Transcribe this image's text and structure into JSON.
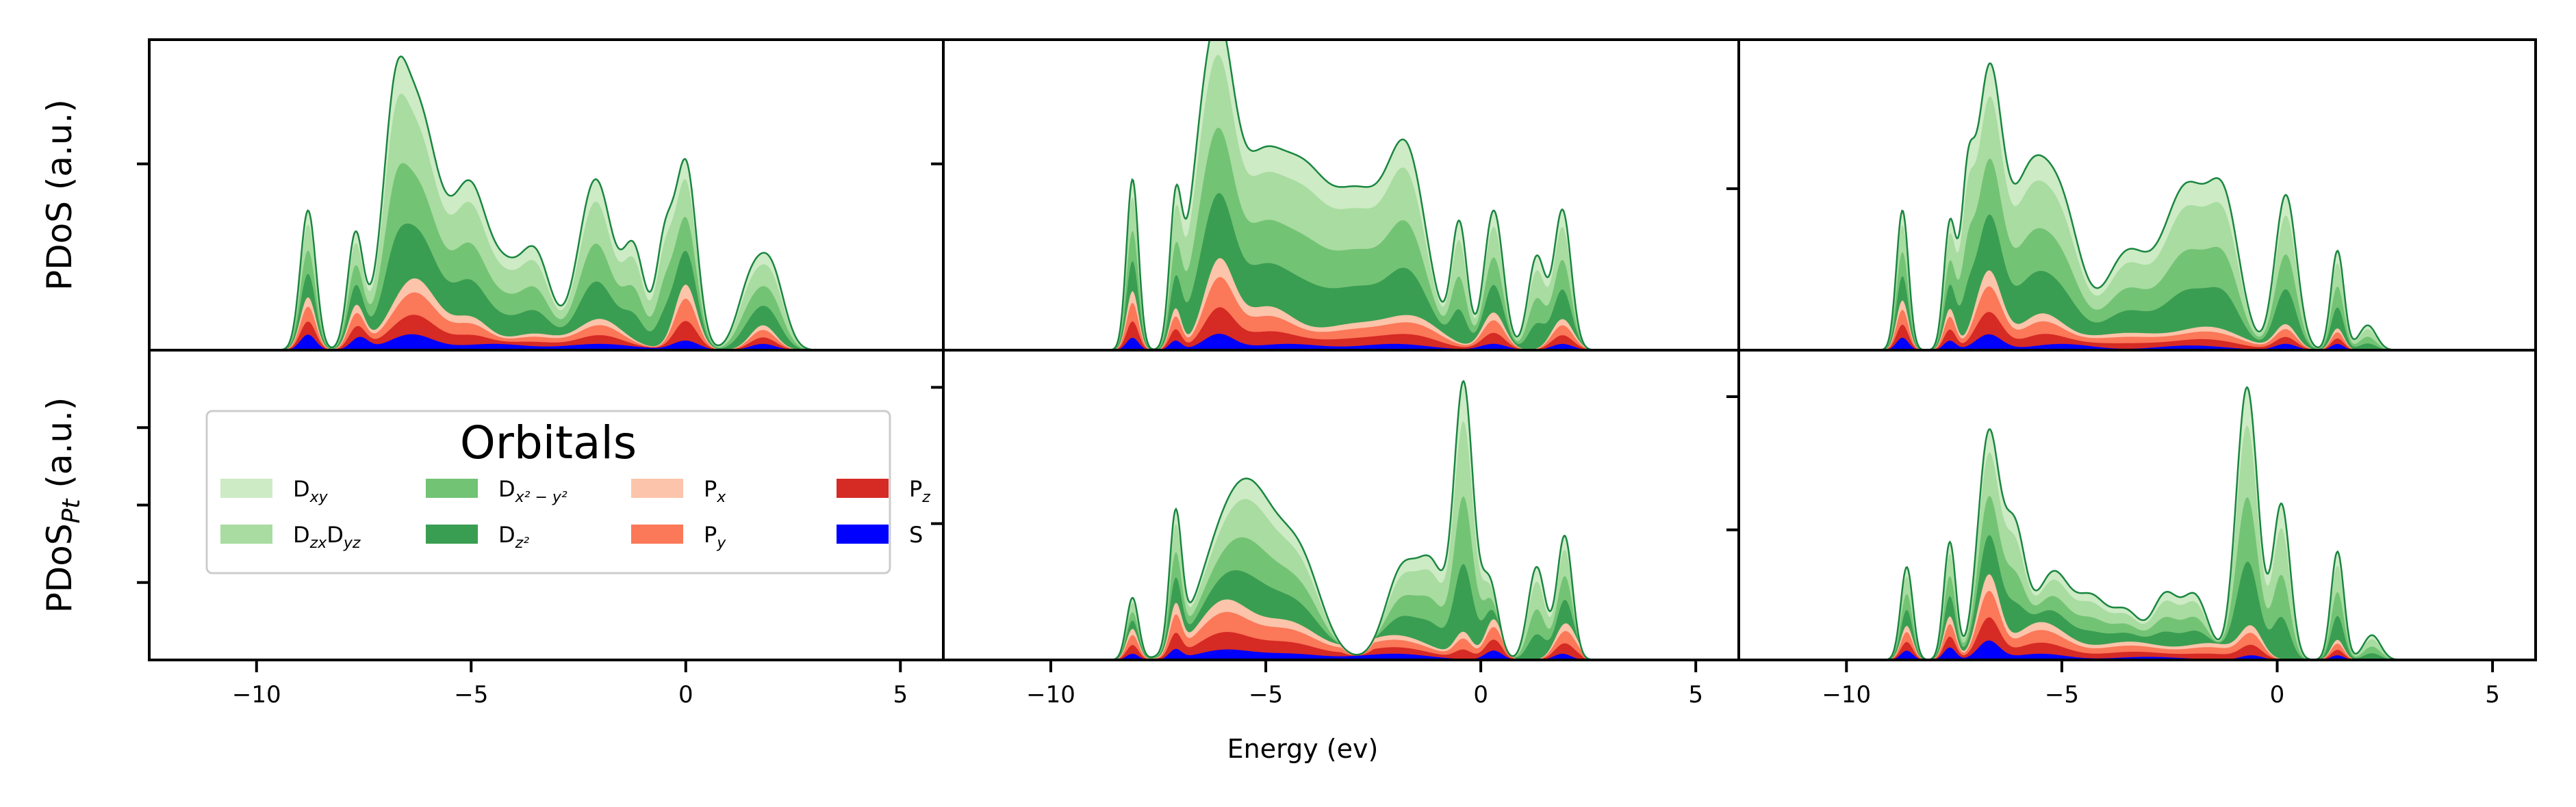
{
  "chart_data": {
    "type": "area",
    "layout": {
      "rows": 2,
      "cols": 3,
      "sharex": true
    },
    "xlabel": "Energy (ev)",
    "row_ylabels": [
      {
        "text": "PDoS (a.u.)",
        "sub": ""
      },
      {
        "text": "PDoS",
        "sub": "Pt",
        "suffix": " (a.u.)"
      }
    ],
    "xlim": [
      -12.5,
      6
    ],
    "xticks": [
      -10,
      -5,
      0,
      5
    ],
    "xtick_labels": [
      "−10",
      "−5",
      "0",
      "5"
    ],
    "ylim": [
      0,
      1
    ],
    "legend": {
      "title": "Orbitals",
      "placement": "center-left of bottom-left panel",
      "ncol": 4,
      "entries": [
        {
          "key": "Dxy",
          "label": "D",
          "sub": "xy"
        },
        {
          "key": "Dzx",
          "label": "D",
          "sub": "zx",
          "label2": "D",
          "sub2": "yz"
        },
        {
          "key": "Dx2",
          "label": "D",
          "sub": "x² − y²"
        },
        {
          "key": "Dz2",
          "label": "D",
          "sub": "z²"
        },
        {
          "key": "Px",
          "label": "P",
          "sub": "x"
        },
        {
          "key": "Py",
          "label": "P",
          "sub": "y"
        },
        {
          "key": "Pz",
          "label": "P",
          "sub": "z"
        },
        {
          "key": "S",
          "label": "S",
          "sub": ""
        }
      ]
    },
    "stack_order": [
      "S",
      "Pz",
      "Py",
      "Px",
      "Dz2",
      "Dx2",
      "Dzx",
      "Dxy"
    ],
    "colors": {
      "S": "#0000ff",
      "Pz": "#d62a24",
      "Py": "#fb7858",
      "Px": "#fcc4aa",
      "Dz2": "#3a9e52",
      "Dx2": "#73c375",
      "Dzx": "#a8dca0",
      "Dxy": "#cdebc5",
      "edge": "#1a8640"
    },
    "panels": [
      {
        "row": 0,
        "col": 0,
        "empty": false,
        "xmin": -12,
        "xmax": 5.2,
        "yticks": [
          0.6
        ],
        "total_peaks": [
          [
            -8.8,
            0.45,
            0.18
          ],
          [
            -7.7,
            0.35,
            0.18
          ],
          [
            -6.3,
            0.8,
            0.55
          ],
          [
            -6.8,
            0.35,
            0.25
          ],
          [
            -5,
            0.48,
            0.4
          ],
          [
            -4.2,
            0.2,
            0.35
          ],
          [
            -3.5,
            0.3,
            0.35
          ],
          [
            -2.1,
            0.55,
            0.4
          ],
          [
            -1.2,
            0.3,
            0.25
          ],
          [
            -0.5,
            0.32,
            0.2
          ],
          [
            0,
            0.6,
            0.25
          ],
          [
            1.5,
            0.2,
            0.3
          ],
          [
            2,
            0.24,
            0.3
          ]
        ],
        "p_peaks": [
          [
            -8.8,
            0.12,
            0.18
          ],
          [
            -7.7,
            0.1,
            0.18
          ],
          [
            -6.3,
            0.18,
            0.55
          ],
          [
            -5,
            0.08,
            0.4
          ],
          [
            -3.5,
            0.04,
            0.5
          ],
          [
            -2,
            0.08,
            0.5
          ],
          [
            0,
            0.18,
            0.25
          ],
          [
            1.8,
            0.06,
            0.3
          ]
        ],
        "s_peaks": [
          [
            -8.8,
            0.05,
            0.18
          ],
          [
            -7.6,
            0.04,
            0.2
          ],
          [
            -6.4,
            0.05,
            0.5
          ],
          [
            -4.5,
            0.02,
            0.8
          ],
          [
            -2,
            0.02,
            0.8
          ],
          [
            0,
            0.03,
            0.3
          ],
          [
            1.8,
            0.02,
            0.3
          ]
        ]
      },
      {
        "row": 0,
        "col": 1,
        "empty": false,
        "xmin": -11,
        "xmax": 5.2,
        "yticks": [
          0.6
        ],
        "total_peaks": [
          [
            -8.1,
            0.55,
            0.14
          ],
          [
            -7.1,
            0.42,
            0.14
          ],
          [
            -6.1,
            0.85,
            0.35
          ],
          [
            -6.6,
            0.35,
            0.3
          ],
          [
            -5.2,
            0.52,
            0.55
          ],
          [
            -4.1,
            0.5,
            0.6
          ],
          [
            -2.8,
            0.45,
            0.6
          ],
          [
            -1.7,
            0.58,
            0.45
          ],
          [
            -0.5,
            0.4,
            0.18
          ],
          [
            0.3,
            0.45,
            0.22
          ],
          [
            1.3,
            0.3,
            0.2
          ],
          [
            1.9,
            0.45,
            0.2
          ]
        ],
        "p_peaks": [
          [
            -8.1,
            0.15,
            0.14
          ],
          [
            -7.1,
            0.1,
            0.14
          ],
          [
            -6.1,
            0.22,
            0.35
          ],
          [
            -5,
            0.12,
            0.6
          ],
          [
            -3,
            0.07,
            0.8
          ],
          [
            -1.5,
            0.08,
            0.6
          ],
          [
            0.3,
            0.1,
            0.25
          ],
          [
            1.9,
            0.08,
            0.25
          ]
        ],
        "s_peaks": [
          [
            -8.1,
            0.04,
            0.14
          ],
          [
            -7.1,
            0.03,
            0.14
          ],
          [
            -6.1,
            0.05,
            0.35
          ],
          [
            -4.5,
            0.02,
            0.8
          ],
          [
            -2,
            0.02,
            0.8
          ],
          [
            0.3,
            0.02,
            0.3
          ],
          [
            1.9,
            0.02,
            0.25
          ]
        ]
      },
      {
        "row": 0,
        "col": 2,
        "empty": false,
        "xmin": -11,
        "xmax": 5.2,
        "yticks": [
          0.52
        ],
        "total_peaks": [
          [
            -8.7,
            0.45,
            0.14
          ],
          [
            -7.6,
            0.4,
            0.14
          ],
          [
            -6.7,
            0.85,
            0.3
          ],
          [
            -7.2,
            0.4,
            0.15
          ],
          [
            -5.8,
            0.5,
            0.45
          ],
          [
            -5,
            0.42,
            0.45
          ],
          [
            -3.5,
            0.3,
            0.5
          ],
          [
            -2.1,
            0.52,
            0.55
          ],
          [
            -1.2,
            0.38,
            0.35
          ],
          [
            0.2,
            0.5,
            0.25
          ],
          [
            1.4,
            0.32,
            0.15
          ],
          [
            2.1,
            0.08,
            0.2
          ]
        ],
        "p_peaks": [
          [
            -8.7,
            0.12,
            0.14
          ],
          [
            -7.6,
            0.1,
            0.14
          ],
          [
            -6.7,
            0.2,
            0.3
          ],
          [
            -5.5,
            0.1,
            0.5
          ],
          [
            -3.5,
            0.05,
            0.8
          ],
          [
            -1.5,
            0.06,
            0.7
          ],
          [
            0.2,
            0.06,
            0.25
          ],
          [
            1.4,
            0.05,
            0.15
          ]
        ],
        "s_peaks": [
          [
            -8.7,
            0.04,
            0.14
          ],
          [
            -7.6,
            0.03,
            0.14
          ],
          [
            -6.7,
            0.05,
            0.3
          ],
          [
            -5,
            0.02,
            0.7
          ],
          [
            -2,
            0.015,
            0.8
          ],
          [
            0.2,
            0.02,
            0.25
          ],
          [
            1.4,
            0.02,
            0.15
          ]
        ]
      },
      {
        "row": 1,
        "col": 0,
        "empty": true,
        "xmin": -12,
        "xmax": 5.2,
        "yticks": [
          0.25,
          0.5,
          0.75
        ],
        "total_peaks": [],
        "p_peaks": [],
        "s_peaks": []
      },
      {
        "row": 1,
        "col": 1,
        "empty": false,
        "xmin": -11,
        "xmax": 5.2,
        "yticks": [
          0.44,
          0.88
        ],
        "total_peaks": [
          [
            -8.1,
            0.2,
            0.14
          ],
          [
            -7.1,
            0.42,
            0.14
          ],
          [
            -6,
            0.35,
            0.6
          ],
          [
            -5.2,
            0.38,
            0.55
          ],
          [
            -4.2,
            0.3,
            0.5
          ],
          [
            -1.8,
            0.3,
            0.4
          ],
          [
            -1.1,
            0.25,
            0.3
          ],
          [
            -0.4,
            0.88,
            0.22
          ],
          [
            0.2,
            0.25,
            0.2
          ],
          [
            1.3,
            0.3,
            0.2
          ],
          [
            1.95,
            0.4,
            0.18
          ]
        ],
        "p_peaks": [
          [
            -8.1,
            0.08,
            0.14
          ],
          [
            -7.1,
            0.12,
            0.14
          ],
          [
            -6,
            0.15,
            0.6
          ],
          [
            -4.5,
            0.1,
            0.7
          ],
          [
            -2,
            0.06,
            0.8
          ],
          [
            -0.4,
            0.08,
            0.2
          ],
          [
            0.3,
            0.1,
            0.2
          ],
          [
            2,
            0.1,
            0.25
          ]
        ],
        "s_peaks": [
          [
            -8.1,
            0.02,
            0.14
          ],
          [
            -7.1,
            0.03,
            0.14
          ],
          [
            -6,
            0.03,
            0.6
          ],
          [
            -4.5,
            0.02,
            0.8
          ],
          [
            -2,
            0.02,
            0.8
          ],
          [
            0.3,
            0.03,
            0.2
          ],
          [
            1.9,
            0.02,
            0.2
          ]
        ]
      },
      {
        "row": 1,
        "col": 2,
        "empty": false,
        "xmin": -11,
        "xmax": 5.2,
        "yticks": [
          0.42,
          0.85
        ],
        "total_peaks": [
          [
            -8.6,
            0.3,
            0.14
          ],
          [
            -7.6,
            0.38,
            0.14
          ],
          [
            -6.7,
            0.72,
            0.25
          ],
          [
            -6.1,
            0.4,
            0.25
          ],
          [
            -5.2,
            0.28,
            0.4
          ],
          [
            -4.3,
            0.18,
            0.35
          ],
          [
            -3.5,
            0.15,
            0.35
          ],
          [
            -2.6,
            0.2,
            0.3
          ],
          [
            -1.9,
            0.2,
            0.3
          ],
          [
            -0.7,
            0.88,
            0.25
          ],
          [
            0.1,
            0.5,
            0.2
          ],
          [
            1.4,
            0.35,
            0.15
          ],
          [
            2.2,
            0.08,
            0.2
          ]
        ],
        "p_peaks": [
          [
            -8.6,
            0.08,
            0.14
          ],
          [
            -7.6,
            0.1,
            0.14
          ],
          [
            -6.7,
            0.2,
            0.25
          ],
          [
            -5.5,
            0.1,
            0.6
          ],
          [
            -3.5,
            0.05,
            0.8
          ],
          [
            -1.5,
            0.05,
            0.6
          ],
          [
            -0.6,
            0.08,
            0.25
          ],
          [
            1.4,
            0.05,
            0.15
          ]
        ],
        "s_peaks": [
          [
            -8.6,
            0.03,
            0.14
          ],
          [
            -7.6,
            0.04,
            0.14
          ],
          [
            -6.7,
            0.06,
            0.25
          ],
          [
            -5.5,
            0.02,
            0.6
          ],
          [
            -3,
            0.01,
            0.8
          ],
          [
            -0.6,
            0.015,
            0.25
          ],
          [
            1.4,
            0.015,
            0.15
          ]
        ]
      }
    ],
    "fractions": {
      "S": 0.07,
      "P_split": {
        "Px": 0.25,
        "Py": 0.4,
        "Pz": 0.35
      },
      "D_split": {
        "Dxy": 0.16,
        "Dzx": 0.3,
        "Dx2": 0.27,
        "Dz2": 0.27
      }
    }
  }
}
